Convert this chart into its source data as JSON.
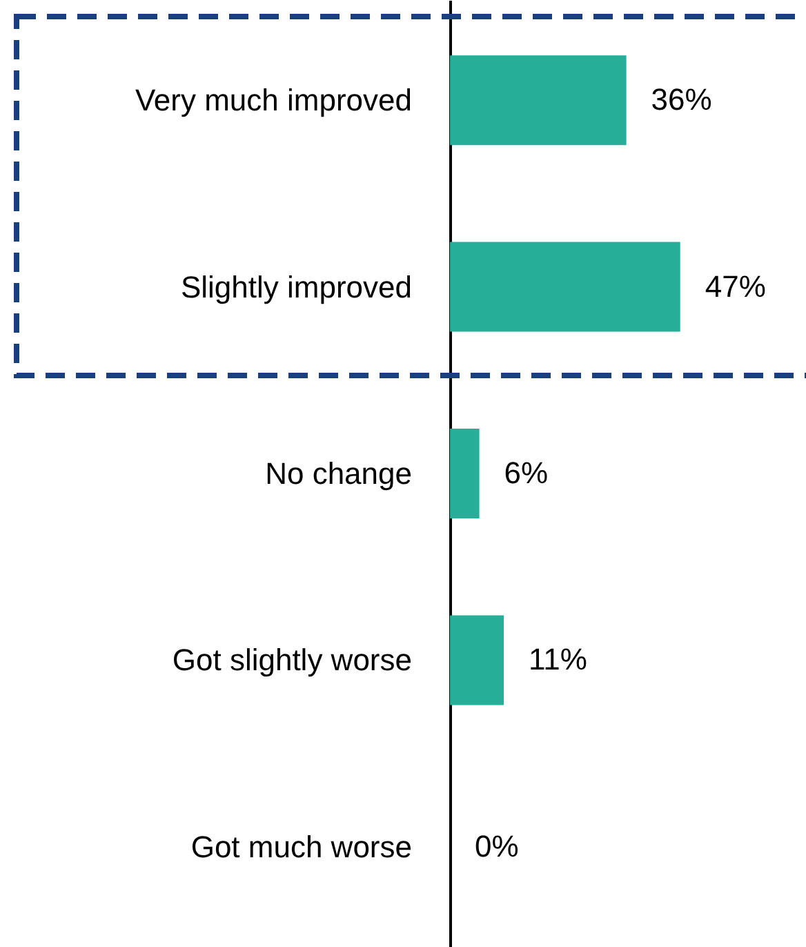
{
  "chart_data": {
    "type": "bar",
    "orientation": "horizontal",
    "categories": [
      "Very much improved",
      "Slightly improved",
      "No change",
      "Got slightly worse",
      "Got much worse"
    ],
    "values": [
      36,
      47,
      6,
      11,
      0
    ],
    "color": "#26ae98",
    "value_labels": [
      "36%",
      "47%",
      "6%",
      "11%",
      "0%"
    ],
    "tick_labels": "y"
  }
}
